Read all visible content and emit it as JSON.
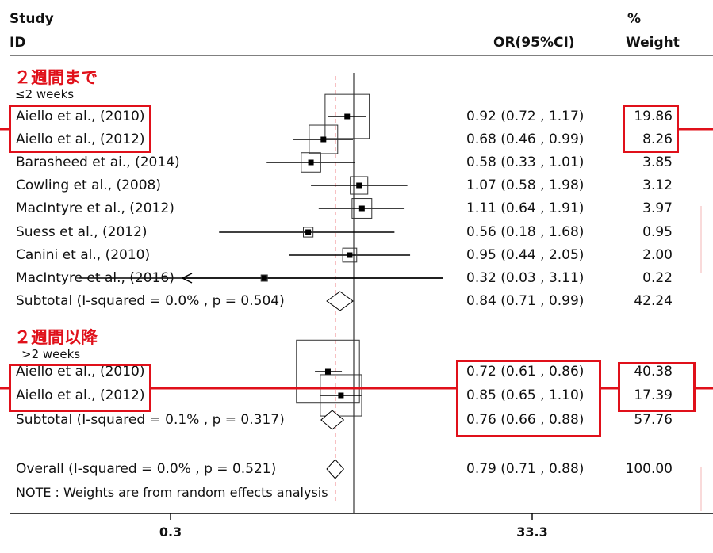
{
  "header": {
    "study": "Study",
    "id": "ID",
    "or_ci": "OR(95%CI)",
    "pct": "%",
    "weight": "Weight"
  },
  "groups": [
    {
      "title": "２週間まで",
      "label": "≤2 weeks",
      "studies": [
        {
          "name": "Aiello et al., (2010)",
          "ci_text": "0.92 (0.72 , 1.17)",
          "weight_text": "19.86",
          "highlight": true
        },
        {
          "name": "Aiello et al., (2012)",
          "ci_text": "0.68 (0.46 , 0.99)",
          "weight_text": "8.26",
          "highlight": true
        },
        {
          "name": "Barasheed et ai., (2014)",
          "ci_text": "0.58 (0.33 , 1.01)",
          "weight_text": "3.85",
          "highlight": false
        },
        {
          "name": "Cowling et al., (2008)",
          "ci_text": "1.07 (0.58 , 1.98)",
          "weight_text": "3.12",
          "highlight": false
        },
        {
          "name": "MacIntyre et al., (2012)",
          "ci_text": "1.11 (0.64 , 1.91)",
          "weight_text": "3.97",
          "highlight": false
        },
        {
          "name": "Suess et al., (2012)",
          "ci_text": "0.56 (0.18 , 1.68)",
          "weight_text": "0.95",
          "highlight": false
        },
        {
          "name": "Canini et al., (2010)",
          "ci_text": "0.95 (0.44 , 2.05)",
          "weight_text": "2.00",
          "highlight": false
        },
        {
          "name": "MacIntyre et al., (2016)",
          "ci_text": "0.32 (0.03 , 3.11)",
          "weight_text": "0.22",
          "highlight": false
        }
      ],
      "subtotal": {
        "label": "Subtotal (I-squared = 0.0% , p = 0.504)",
        "ci_text": "0.84 (0.71 , 0.99)",
        "weight_text": "42.24"
      }
    },
    {
      "title": "２週間以降",
      "label": ">2 weeks",
      "studies": [
        {
          "name": "Aiello et al., (2010)",
          "ci_text": "0.72 (0.61 , 0.86)",
          "weight_text": "40.38",
          "highlight": true
        },
        {
          "name": "Aiello et al., (2012)",
          "ci_text": "0.85 (0.65 , 1.10)",
          "weight_text": "17.39",
          "highlight": true
        }
      ],
      "subtotal": {
        "label": "Subtotal (I-squared = 0.1% , p = 0.317)",
        "ci_text": "0.76 (0.66 , 0.88)",
        "weight_text": "57.76"
      }
    }
  ],
  "overall": {
    "label": "Overall (I-squared = 0.0% , p = 0.521)",
    "ci_text": "0.79 (0.71 , 0.88)",
    "weight_text": "100.00"
  },
  "note": "NOTE : Weights are from random effects analysis",
  "colors": {
    "highlight": "#e0101a",
    "marker": "#000000",
    "ref_line": "#e0101a"
  },
  "chart_data": {
    "type": "forest",
    "x_scale": "log",
    "x_ticks": [
      "0.3",
      "33.3"
    ],
    "reference_line": 1.0,
    "overall_line": 0.79,
    "groups": [
      {
        "label": "≤2 weeks",
        "studies": [
          {
            "study": "Aiello et al., (2010)",
            "or": 0.92,
            "lo": 0.72,
            "hi": 1.17,
            "weight": 19.86
          },
          {
            "study": "Aiello et al., (2012)",
            "or": 0.68,
            "lo": 0.46,
            "hi": 0.99,
            "weight": 8.26
          },
          {
            "study": "Barasheed et ai., (2014)",
            "or": 0.58,
            "lo": 0.33,
            "hi": 1.01,
            "weight": 3.85
          },
          {
            "study": "Cowling et al., (2008)",
            "or": 1.07,
            "lo": 0.58,
            "hi": 1.98,
            "weight": 3.12
          },
          {
            "study": "MacIntyre et al., (2012)",
            "or": 1.11,
            "lo": 0.64,
            "hi": 1.91,
            "weight": 3.97
          },
          {
            "study": "Suess et al., (2012)",
            "or": 0.56,
            "lo": 0.18,
            "hi": 1.68,
            "weight": 0.95
          },
          {
            "study": "Canini et al., (2010)",
            "or": 0.95,
            "lo": 0.44,
            "hi": 2.05,
            "weight": 2.0
          },
          {
            "study": "MacIntyre et al., (2016)",
            "or": 0.32,
            "lo": 0.03,
            "hi": 3.11,
            "weight": 0.22
          }
        ],
        "subtotal": {
          "or": 0.84,
          "lo": 0.71,
          "hi": 0.99,
          "weight": 42.24,
          "i_squared": "0.0%",
          "p": 0.504
        }
      },
      {
        "label": ">2 weeks",
        "studies": [
          {
            "study": "Aiello et al., (2010)",
            "or": 0.72,
            "lo": 0.61,
            "hi": 0.86,
            "weight": 40.38
          },
          {
            "study": "Aiello et al., (2012)",
            "or": 0.85,
            "lo": 0.65,
            "hi": 1.1,
            "weight": 17.39
          }
        ],
        "subtotal": {
          "or": 0.76,
          "lo": 0.66,
          "hi": 0.88,
          "weight": 57.76,
          "i_squared": "0.1%",
          "p": 0.317
        }
      }
    ],
    "overall": {
      "or": 0.79,
      "lo": 0.71,
      "hi": 0.88,
      "weight": 100.0,
      "i_squared": "0.0%",
      "p": 0.521
    }
  }
}
